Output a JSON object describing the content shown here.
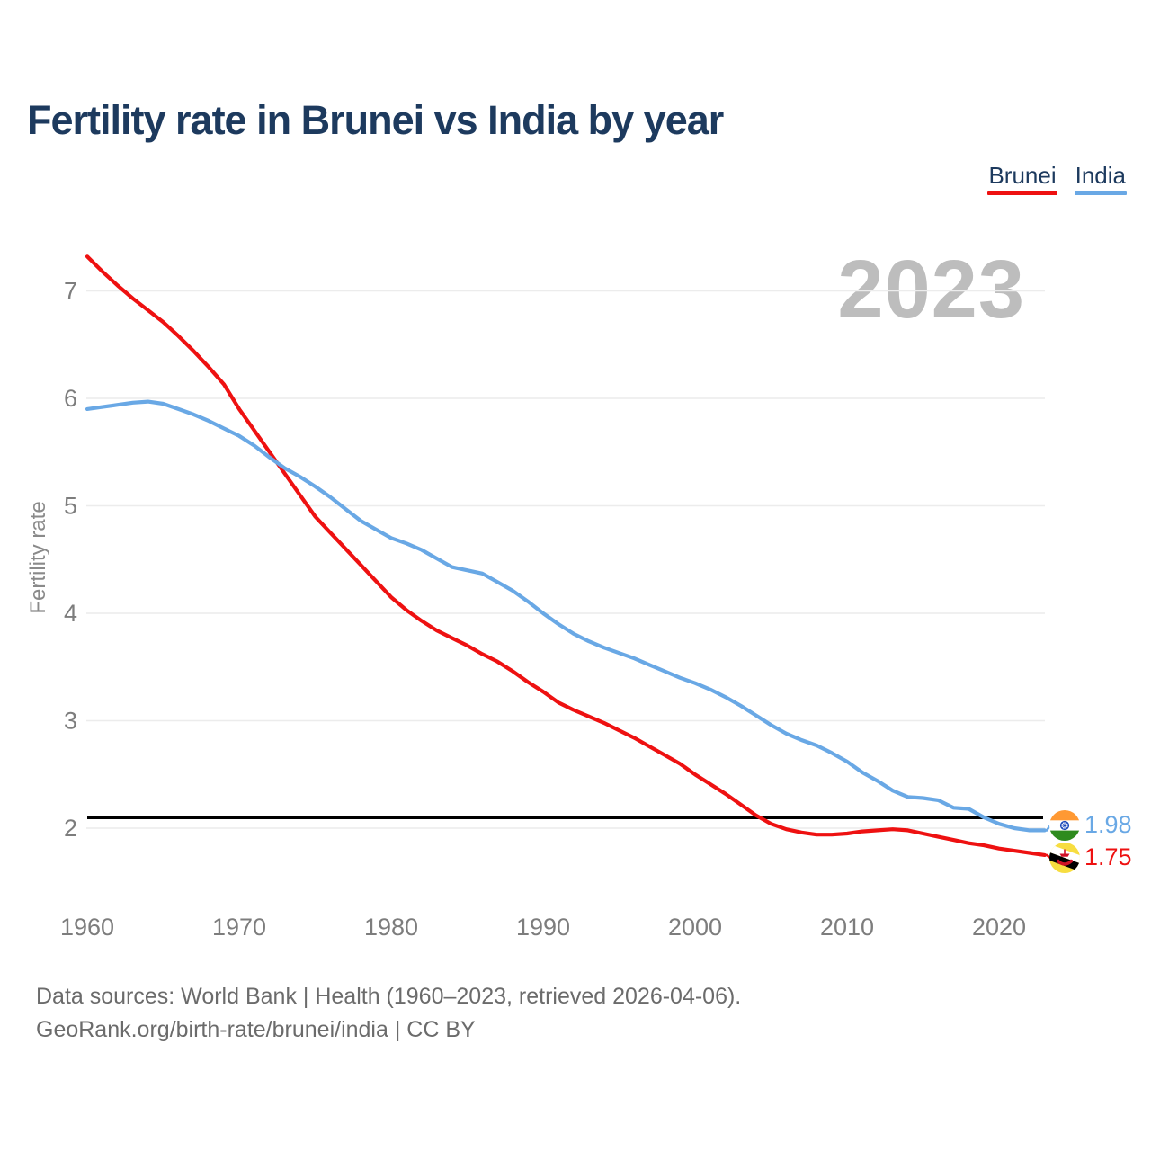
{
  "page": {
    "title": "Fertility rate in Brunei vs India by year"
  },
  "legend": {
    "items": [
      {
        "label": "Brunei"
      },
      {
        "label": "India"
      }
    ]
  },
  "watermark": "2023",
  "y_axis_label": "Fertility rate",
  "end_labels": {
    "india": "1.98",
    "brunei": "1.75"
  },
  "footer": {
    "line1": "Data sources: World Bank | Health (1960–2023, retrieved 2026-04-06).",
    "line2": "GeoRank.org/birth-rate/brunei/india | CC BY"
  },
  "chart_data": {
    "type": "line",
    "title": "Fertility rate in Brunei vs India by year",
    "xlabel": "",
    "ylabel": "Fertility rate",
    "watermark": "2023",
    "legend_position": "top-right",
    "grid": "horizontal",
    "xlim": [
      1960,
      2023
    ],
    "ylim": [
      1.6,
      7.45
    ],
    "xticks": [
      1960,
      1970,
      1980,
      1990,
      2000,
      2010,
      2020
    ],
    "yticks": [
      2,
      3,
      4,
      5,
      6,
      7
    ],
    "reference_line": {
      "value": 2.1,
      "color": "#000000"
    },
    "x": [
      1960,
      1961,
      1962,
      1963,
      1964,
      1965,
      1966,
      1967,
      1968,
      1969,
      1970,
      1971,
      1972,
      1973,
      1974,
      1975,
      1976,
      1977,
      1978,
      1979,
      1980,
      1981,
      1982,
      1983,
      1984,
      1985,
      1986,
      1987,
      1988,
      1989,
      1990,
      1991,
      1992,
      1993,
      1994,
      1995,
      1996,
      1997,
      1998,
      1999,
      2000,
      2001,
      2002,
      2003,
      2004,
      2005,
      2006,
      2007,
      2008,
      2009,
      2010,
      2011,
      2012,
      2013,
      2014,
      2015,
      2016,
      2017,
      2018,
      2019,
      2020,
      2021,
      2022,
      2023
    ],
    "series": [
      {
        "name": "Brunei",
        "color": "#ee1111",
        "end_label": "1.75",
        "values": [
          7.32,
          7.18,
          7.05,
          6.93,
          6.82,
          6.71,
          6.58,
          6.44,
          6.29,
          6.13,
          5.9,
          5.7,
          5.5,
          5.3,
          5.1,
          4.9,
          4.75,
          4.6,
          4.45,
          4.3,
          4.15,
          4.03,
          3.93,
          3.84,
          3.77,
          3.7,
          3.62,
          3.55,
          3.46,
          3.36,
          3.27,
          3.17,
          3.1,
          3.04,
          2.98,
          2.91,
          2.84,
          2.76,
          2.68,
          2.6,
          2.5,
          2.41,
          2.32,
          2.22,
          2.12,
          2.04,
          1.99,
          1.96,
          1.94,
          1.94,
          1.95,
          1.97,
          1.98,
          1.99,
          1.98,
          1.95,
          1.92,
          1.89,
          1.86,
          1.84,
          1.81,
          1.79,
          1.77,
          1.75
        ]
      },
      {
        "name": "India",
        "color": "#69a8e5",
        "end_label": "1.98",
        "values": [
          5.9,
          5.92,
          5.94,
          5.96,
          5.97,
          5.95,
          5.9,
          5.85,
          5.79,
          5.72,
          5.65,
          5.56,
          5.45,
          5.35,
          5.27,
          5.18,
          5.08,
          4.97,
          4.86,
          4.78,
          4.7,
          4.65,
          4.59,
          4.51,
          4.43,
          4.4,
          4.37,
          4.29,
          4.21,
          4.11,
          4.0,
          3.9,
          3.81,
          3.74,
          3.68,
          3.63,
          3.58,
          3.52,
          3.46,
          3.4,
          3.35,
          3.29,
          3.22,
          3.14,
          3.05,
          2.96,
          2.88,
          2.82,
          2.77,
          2.7,
          2.62,
          2.52,
          2.44,
          2.35,
          2.29,
          2.28,
          2.26,
          2.19,
          2.18,
          2.1,
          2.04,
          2.0,
          1.98,
          1.98
        ]
      }
    ],
    "style": {
      "grid_color": "#ececec",
      "axis_text_color": "#7d7d7d",
      "title_color": "#1d3a5e",
      "watermark_color": "#bdbdbd",
      "footer_color": "#6b6b6b"
    }
  }
}
